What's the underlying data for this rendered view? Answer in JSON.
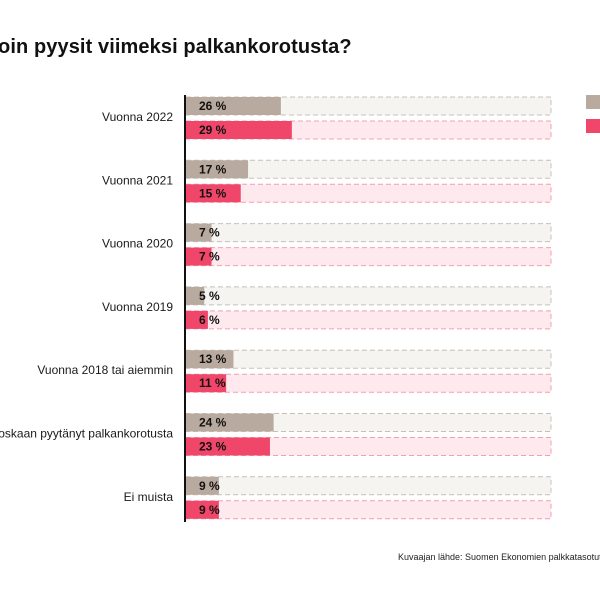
{
  "title": "oin pyysit viimeksi palkankorotusta?",
  "source": "Kuvaajan lähde: Suomen Ekonomien palkkatasotut",
  "colors": {
    "series_a": "#b8aa9e",
    "series_a_track": "#f6f4f1",
    "series_b": "#f0466a",
    "series_b_track": "#feeaee",
    "axis": "#111111",
    "dash": "#c8c0b8",
    "dash_b": "#f0a0b0"
  },
  "legend": [
    {
      "color": "#b8aa9e"
    },
    {
      "color": "#f0466a"
    }
  ],
  "chart_data": {
    "type": "bar",
    "orientation": "horizontal",
    "categories": [
      "Vuonna 2022",
      "Vuonna 2021",
      "Vuonna 2020",
      "Vuonna 2019",
      "Vuonna 2018 tai aiemmin",
      "oskaan pyytänyt palkankorotusta",
      "Ei muista"
    ],
    "series": [
      {
        "values": [
          26,
          17,
          7,
          5,
          13,
          24,
          9
        ],
        "labels": [
          "26 %",
          "17 %",
          "7 %",
          "5 %",
          "13 %",
          "24 %",
          "9 %"
        ]
      },
      {
        "values": [
          29,
          15,
          7,
          6,
          11,
          23,
          9
        ],
        "labels": [
          "29 %",
          "15 %",
          "7 %",
          "6 %",
          "11 %",
          "23 %",
          "9 %"
        ]
      }
    ],
    "xlim": [
      0,
      100
    ],
    "grid": false
  }
}
